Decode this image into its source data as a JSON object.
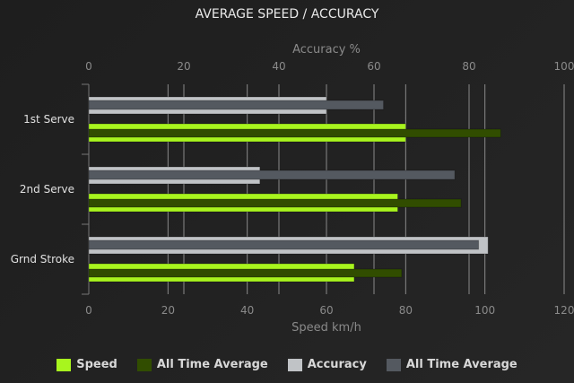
{
  "chart_data": {
    "type": "bar",
    "orientation": "horizontal",
    "title": "AVERAGE SPEED / ACCURACY",
    "categories": [
      "1st Serve",
      "2nd Serve",
      "Grnd Stroke"
    ],
    "top_axis": {
      "label": "Accuracy %",
      "range": [
        0,
        100
      ],
      "ticks": [
        0,
        20,
        40,
        60,
        80,
        100
      ]
    },
    "bottom_axis": {
      "label": "Speed km/h",
      "range": [
        0,
        120
      ],
      "ticks": [
        0,
        20,
        40,
        60,
        80,
        100,
        120
      ]
    },
    "grid": true,
    "legend_position": "bottom",
    "series": [
      {
        "name": "Speed",
        "axis": "bottom",
        "color": "#a8f51e",
        "values": [
          80,
          78,
          67
        ]
      },
      {
        "name": "All Time Average",
        "axis": "bottom",
        "color": "#314d00",
        "values": [
          104,
          94,
          79
        ]
      },
      {
        "name": "Accuracy",
        "axis": "top",
        "color": "#c0c3c6",
        "values": [
          50,
          36,
          84
        ]
      },
      {
        "name": "All Time Average",
        "axis": "top",
        "color": "#545960",
        "values": [
          62,
          77,
          82
        ]
      }
    ]
  }
}
